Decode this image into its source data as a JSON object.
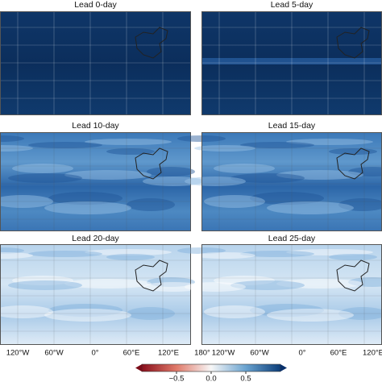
{
  "panels": [
    {
      "title": "Lead 0-day"
    },
    {
      "title": "Lead 5-day"
    },
    {
      "title": "Lead 10-day"
    },
    {
      "title": "Lead 15-day"
    },
    {
      "title": "Lead 20-day"
    },
    {
      "title": "Lead 25-day"
    }
  ],
  "x_labels_left": [
    "120°W",
    "60°W",
    "0°",
    "60°E",
    "120°E",
    "180°"
  ],
  "x_labels_right": [
    "120°W",
    "60°W",
    "0°",
    "60°E",
    "120°E"
  ],
  "colorbar": {
    "clim": [
      -1,
      1
    ],
    "ticks": [
      {
        "value": -0.5,
        "label": "−0.5"
      },
      {
        "value": 0,
        "label": "0.0"
      },
      0.5
    ]
  }
}
